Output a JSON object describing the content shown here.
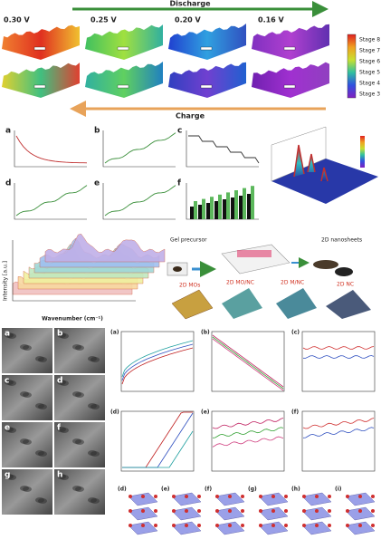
{
  "header": {
    "arrow_top": "Discharge",
    "arrow_bottom": "Charge",
    "voltages": [
      "0.30 V",
      "0.25 V",
      "0.20 V",
      "0.16 V"
    ],
    "stages": [
      "Stage 8",
      "Stage 7",
      "Stage 6",
      "Stage 5",
      "Stage 4",
      "Stage 3"
    ]
  },
  "panels": {
    "letters": [
      "a",
      "b",
      "c",
      "d",
      "e",
      "f"
    ]
  },
  "raman": {
    "x_label": "Wavenumber (cm⁻¹)",
    "y_label": "Intensity [a.u.]"
  },
  "schematic": {
    "labels": [
      "Gel precursor",
      "2D nanosheets",
      "2D MOs",
      "2D MO/NC",
      "2D M/NC",
      "2D NC"
    ]
  },
  "sem": {
    "letters": [
      "a",
      "b",
      "c",
      "d",
      "e",
      "f",
      "g",
      "h"
    ]
  },
  "plots": {
    "letters": [
      "(a)",
      "(b)",
      "(c)",
      "(d)",
      "(e)",
      "(f)"
    ]
  },
  "structures": {
    "letters": [
      "(d)",
      "(e)",
      "(f)",
      "(g)",
      "(h)",
      "(i)"
    ]
  }
}
